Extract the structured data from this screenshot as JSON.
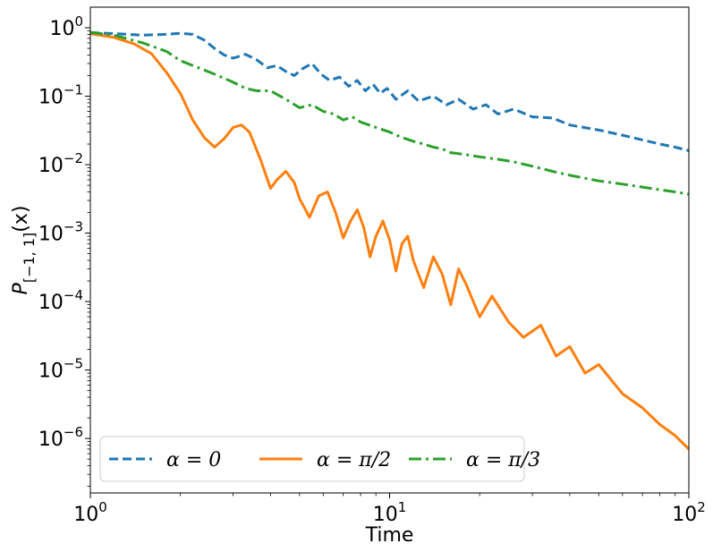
{
  "chart_data": {
    "type": "line",
    "title": "",
    "xlabel": "Time",
    "ylabel": "P[−1, 1](x)",
    "x_scale": "log",
    "y_scale": "log",
    "xlim": [
      1,
      100
    ],
    "ylim": [
      1.6e-07,
      2
    ],
    "grid": false,
    "legend_position": "lower-left",
    "x_ticks": [
      {
        "value": 1,
        "base": "10",
        "exp": "0"
      },
      {
        "value": 10,
        "base": "10",
        "exp": "1"
      },
      {
        "value": 100,
        "base": "10",
        "exp": "2"
      }
    ],
    "y_ticks": [
      {
        "value": 1,
        "base": "10",
        "exp": "0"
      },
      {
        "value": 0.1,
        "base": "10",
        "exp": "−1"
      },
      {
        "value": 0.01,
        "base": "10",
        "exp": "−2"
      },
      {
        "value": 0.001,
        "base": "10",
        "exp": "−3"
      },
      {
        "value": 0.0001,
        "base": "10",
        "exp": "−4"
      },
      {
        "value": 1e-05,
        "base": "10",
        "exp": "−5"
      },
      {
        "value": 1e-06,
        "base": "10",
        "exp": "−6"
      }
    ],
    "series": [
      {
        "name": "α = 0",
        "color": "#1f77b4",
        "dash": "dashed",
        "x": [
          1.0,
          1.2,
          1.5,
          1.8,
          2.0,
          2.2,
          2.4,
          2.6,
          2.8,
          3.0,
          3.3,
          3.6,
          3.9,
          4.2,
          4.5,
          4.8,
          5.1,
          5.5,
          5.9,
          6.3,
          6.8,
          7.3,
          7.8,
          8.3,
          8.8,
          9.3,
          9.8,
          10.5,
          11.5,
          12.5,
          14,
          15.5,
          17,
          19,
          21,
          23,
          26,
          30,
          35,
          40,
          50,
          60,
          70,
          80,
          90,
          100
        ],
        "y": [
          0.85,
          0.82,
          0.78,
          0.8,
          0.83,
          0.8,
          0.66,
          0.5,
          0.4,
          0.36,
          0.41,
          0.34,
          0.26,
          0.28,
          0.23,
          0.2,
          0.25,
          0.3,
          0.21,
          0.17,
          0.19,
          0.14,
          0.17,
          0.12,
          0.15,
          0.11,
          0.13,
          0.09,
          0.12,
          0.085,
          0.1,
          0.075,
          0.09,
          0.065,
          0.075,
          0.055,
          0.065,
          0.05,
          0.048,
          0.038,
          0.032,
          0.027,
          0.023,
          0.02,
          0.018,
          0.016
        ]
      },
      {
        "name": "α = π/2",
        "color": "#ff7f0e",
        "dash": "solid",
        "x": [
          1.0,
          1.2,
          1.4,
          1.6,
          1.8,
          2.0,
          2.2,
          2.4,
          2.6,
          2.8,
          3.0,
          3.2,
          3.4,
          3.7,
          4.0,
          4.2,
          4.5,
          4.8,
          5.0,
          5.4,
          5.8,
          6.2,
          6.6,
          7.0,
          7.4,
          7.8,
          8.2,
          8.6,
          9.0,
          9.5,
          10,
          10.5,
          11,
          11.5,
          12,
          13,
          14,
          15,
          16,
          17,
          18,
          20,
          22,
          25,
          28,
          32,
          36,
          40,
          45,
          50,
          60,
          70,
          80,
          90,
          100
        ],
        "y": [
          0.82,
          0.72,
          0.58,
          0.42,
          0.22,
          0.11,
          0.045,
          0.025,
          0.018,
          0.024,
          0.035,
          0.038,
          0.03,
          0.012,
          0.0045,
          0.006,
          0.008,
          0.0055,
          0.0032,
          0.0017,
          0.0035,
          0.004,
          0.002,
          0.00085,
          0.0015,
          0.0022,
          0.0012,
          0.00045,
          0.0009,
          0.0015,
          0.0008,
          0.00028,
          0.0007,
          0.0009,
          0.0004,
          0.00016,
          0.00045,
          0.00025,
          9e-05,
          0.0003,
          0.00018,
          6e-05,
          0.00012,
          5e-05,
          3e-05,
          4.5e-05,
          1.6e-05,
          2.2e-05,
          9e-06,
          1.2e-05,
          4.5e-06,
          2.8e-06,
          1.6e-06,
          1.1e-06,
          7e-07
        ]
      },
      {
        "name": "α = π/3",
        "color": "#2ca02c",
        "dash": "dashdot",
        "x": [
          1.0,
          1.2,
          1.5,
          1.8,
          2.0,
          2.3,
          2.6,
          3.0,
          3.3,
          3.6,
          4.0,
          4.5,
          5.0,
          5.5,
          6.0,
          6.5,
          7.0,
          7.5,
          8.0,
          9.0,
          10,
          11,
          12,
          13,
          14,
          15,
          16,
          18,
          20,
          23,
          26,
          30,
          35,
          40,
          50,
          60,
          70,
          80,
          90,
          100
        ],
        "y": [
          0.85,
          0.78,
          0.6,
          0.45,
          0.33,
          0.26,
          0.21,
          0.16,
          0.13,
          0.12,
          0.12,
          0.09,
          0.068,
          0.075,
          0.06,
          0.055,
          0.045,
          0.05,
          0.042,
          0.035,
          0.03,
          0.025,
          0.022,
          0.02,
          0.018,
          0.017,
          0.015,
          0.014,
          0.013,
          0.012,
          0.011,
          0.0095,
          0.008,
          0.007,
          0.0058,
          0.0052,
          0.0047,
          0.0043,
          0.004,
          0.0037
        ]
      }
    ]
  }
}
